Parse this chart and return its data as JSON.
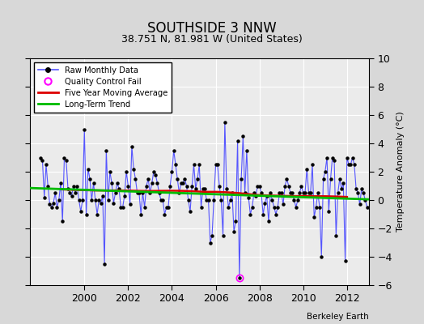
{
  "title": "SOUTHSIDE 3 NNW",
  "subtitle": "38.751 N, 81.981 W (United States)",
  "ylabel": "Temperature Anomaly (°C)",
  "credit": "Berkeley Earth",
  "xlim": [
    1997.5,
    2013.0
  ],
  "ylim": [
    -6,
    10
  ],
  "yticks": [
    -6,
    -4,
    -2,
    0,
    2,
    4,
    6,
    8,
    10
  ],
  "xticks": [
    2000,
    2002,
    2004,
    2006,
    2008,
    2010,
    2012
  ],
  "fig_bg_color": "#d8d8d8",
  "plot_bg_color": "#ebebeb",
  "raw_color": "#5555ff",
  "dot_color": "#000000",
  "moving_avg_color": "#dd0000",
  "trend_color": "#00bb00",
  "qc_fail_color": "#ff00ff",
  "grid_color": "#ffffff",
  "raw_data_x": [
    1998.0,
    1998.083,
    1998.167,
    1998.25,
    1998.333,
    1998.417,
    1998.5,
    1998.583,
    1998.667,
    1998.75,
    1998.833,
    1998.917,
    1999.0,
    1999.083,
    1999.167,
    1999.25,
    1999.333,
    1999.417,
    1999.5,
    1999.583,
    1999.667,
    1999.75,
    1999.833,
    1999.917,
    2000.0,
    2000.083,
    2000.167,
    2000.25,
    2000.333,
    2000.417,
    2000.5,
    2000.583,
    2000.667,
    2000.75,
    2000.833,
    2000.917,
    2001.0,
    2001.083,
    2001.167,
    2001.25,
    2001.333,
    2001.417,
    2001.5,
    2001.583,
    2001.667,
    2001.75,
    2001.833,
    2001.917,
    2002.0,
    2002.083,
    2002.167,
    2002.25,
    2002.333,
    2002.417,
    2002.5,
    2002.583,
    2002.667,
    2002.75,
    2002.833,
    2002.917,
    2003.0,
    2003.083,
    2003.167,
    2003.25,
    2003.333,
    2003.417,
    2003.5,
    2003.583,
    2003.667,
    2003.75,
    2003.833,
    2003.917,
    2004.0,
    2004.083,
    2004.167,
    2004.25,
    2004.333,
    2004.417,
    2004.5,
    2004.583,
    2004.667,
    2004.75,
    2004.833,
    2004.917,
    2005.0,
    2005.083,
    2005.167,
    2005.25,
    2005.333,
    2005.417,
    2005.5,
    2005.583,
    2005.667,
    2005.75,
    2005.833,
    2005.917,
    2006.0,
    2006.083,
    2006.167,
    2006.25,
    2006.333,
    2006.417,
    2006.5,
    2006.583,
    2006.667,
    2006.75,
    2006.833,
    2006.917,
    2007.0,
    2007.083,
    2007.167,
    2007.25,
    2007.333,
    2007.417,
    2007.5,
    2007.583,
    2007.667,
    2007.75,
    2007.833,
    2007.917,
    2008.0,
    2008.083,
    2008.167,
    2008.25,
    2008.333,
    2008.417,
    2008.5,
    2008.583,
    2008.667,
    2008.75,
    2008.833,
    2008.917,
    2009.0,
    2009.083,
    2009.167,
    2009.25,
    2009.333,
    2009.417,
    2009.5,
    2009.583,
    2009.667,
    2009.75,
    2009.833,
    2009.917,
    2010.0,
    2010.083,
    2010.167,
    2010.25,
    2010.333,
    2010.417,
    2010.5,
    2010.583,
    2010.667,
    2010.75,
    2010.833,
    2010.917,
    2011.0,
    2011.083,
    2011.167,
    2011.25,
    2011.333,
    2011.417,
    2011.5,
    2011.583,
    2011.667,
    2011.75,
    2011.833,
    2011.917,
    2012.0,
    2012.083,
    2012.167,
    2012.25,
    2012.333,
    2012.417,
    2012.5,
    2012.583,
    2012.667,
    2012.75,
    2012.833,
    2012.917
  ],
  "raw_data_y": [
    3.0,
    2.8,
    0.2,
    2.5,
    1.0,
    -0.3,
    -0.5,
    -0.2,
    0.5,
    -0.5,
    0.0,
    1.2,
    -1.5,
    3.0,
    2.8,
    0.8,
    0.5,
    0.3,
    1.0,
    0.5,
    1.0,
    0.0,
    -0.8,
    0.0,
    5.0,
    -1.0,
    2.2,
    1.5,
    0.0,
    1.2,
    0.0,
    -1.0,
    0.0,
    -0.2,
    0.3,
    -4.5,
    3.5,
    0.0,
    2.0,
    1.2,
    -0.2,
    0.5,
    1.2,
    0.8,
    -0.5,
    -0.5,
    0.3,
    2.0,
    1.0,
    -0.3,
    3.8,
    2.2,
    1.5,
    0.5,
    0.5,
    -1.0,
    0.5,
    -0.5,
    1.0,
    1.5,
    0.5,
    1.2,
    2.0,
    1.8,
    1.2,
    0.5,
    0.0,
    0.0,
    -1.0,
    -0.5,
    -0.5,
    1.0,
    2.0,
    3.5,
    2.5,
    1.5,
    0.5,
    1.2,
    1.2,
    1.5,
    1.0,
    0.0,
    -0.8,
    1.0,
    2.5,
    0.8,
    1.5,
    2.5,
    -0.5,
    0.8,
    0.8,
    0.0,
    0.0,
    -3.0,
    -2.5,
    0.0,
    2.5,
    2.5,
    1.0,
    0.0,
    -2.5,
    5.5,
    0.8,
    -0.5,
    0.0,
    0.5,
    -2.2,
    -1.5,
    4.2,
    -5.5,
    1.5,
    4.5,
    0.5,
    3.5,
    0.2,
    -1.0,
    -0.5,
    0.5,
    0.3,
    1.0,
    1.0,
    0.5,
    -1.0,
    -0.2,
    0.3,
    -1.5,
    0.5,
    0.0,
    -0.5,
    -1.0,
    -0.5,
    0.5,
    0.5,
    -0.3,
    1.0,
    1.5,
    1.0,
    0.5,
    0.5,
    0.0,
    -0.5,
    0.0,
    0.5,
    1.0,
    0.5,
    0.5,
    2.2,
    0.5,
    0.5,
    2.5,
    -1.2,
    -0.5,
    0.5,
    -0.5,
    -4.0,
    1.5,
    2.0,
    3.0,
    -0.8,
    1.5,
    3.0,
    2.8,
    -2.5,
    0.5,
    1.5,
    0.8,
    1.2,
    -4.3,
    3.0,
    2.5,
    2.5,
    3.0,
    2.5,
    0.8,
    0.5,
    -0.3,
    0.8,
    0.5,
    0.0,
    -0.5
  ],
  "qc_fail_x": [
    2007.083
  ],
  "qc_fail_y": [
    -5.5
  ],
  "moving_avg_x": [
    1999.0,
    1999.5,
    2000.0,
    2000.5,
    2001.0,
    2001.5,
    2002.0,
    2002.5,
    2003.0,
    2003.5,
    2004.0,
    2004.5,
    2005.0,
    2005.5,
    2006.0,
    2006.5,
    2007.0,
    2007.5,
    2008.0,
    2008.5,
    2009.0,
    2009.5,
    2010.0,
    2010.5,
    2011.0,
    2011.5,
    2012.0
  ],
  "moving_avg_y": [
    0.75,
    0.72,
    0.7,
    0.68,
    0.68,
    0.68,
    0.67,
    0.65,
    0.64,
    0.65,
    0.66,
    0.65,
    0.62,
    0.58,
    0.58,
    0.55,
    0.5,
    0.42,
    0.35,
    0.32,
    0.3,
    0.28,
    0.28,
    0.27,
    0.27,
    0.25,
    0.22
  ],
  "trend_x": [
    1997.5,
    2013.0
  ],
  "trend_y": [
    0.85,
    0.05
  ]
}
